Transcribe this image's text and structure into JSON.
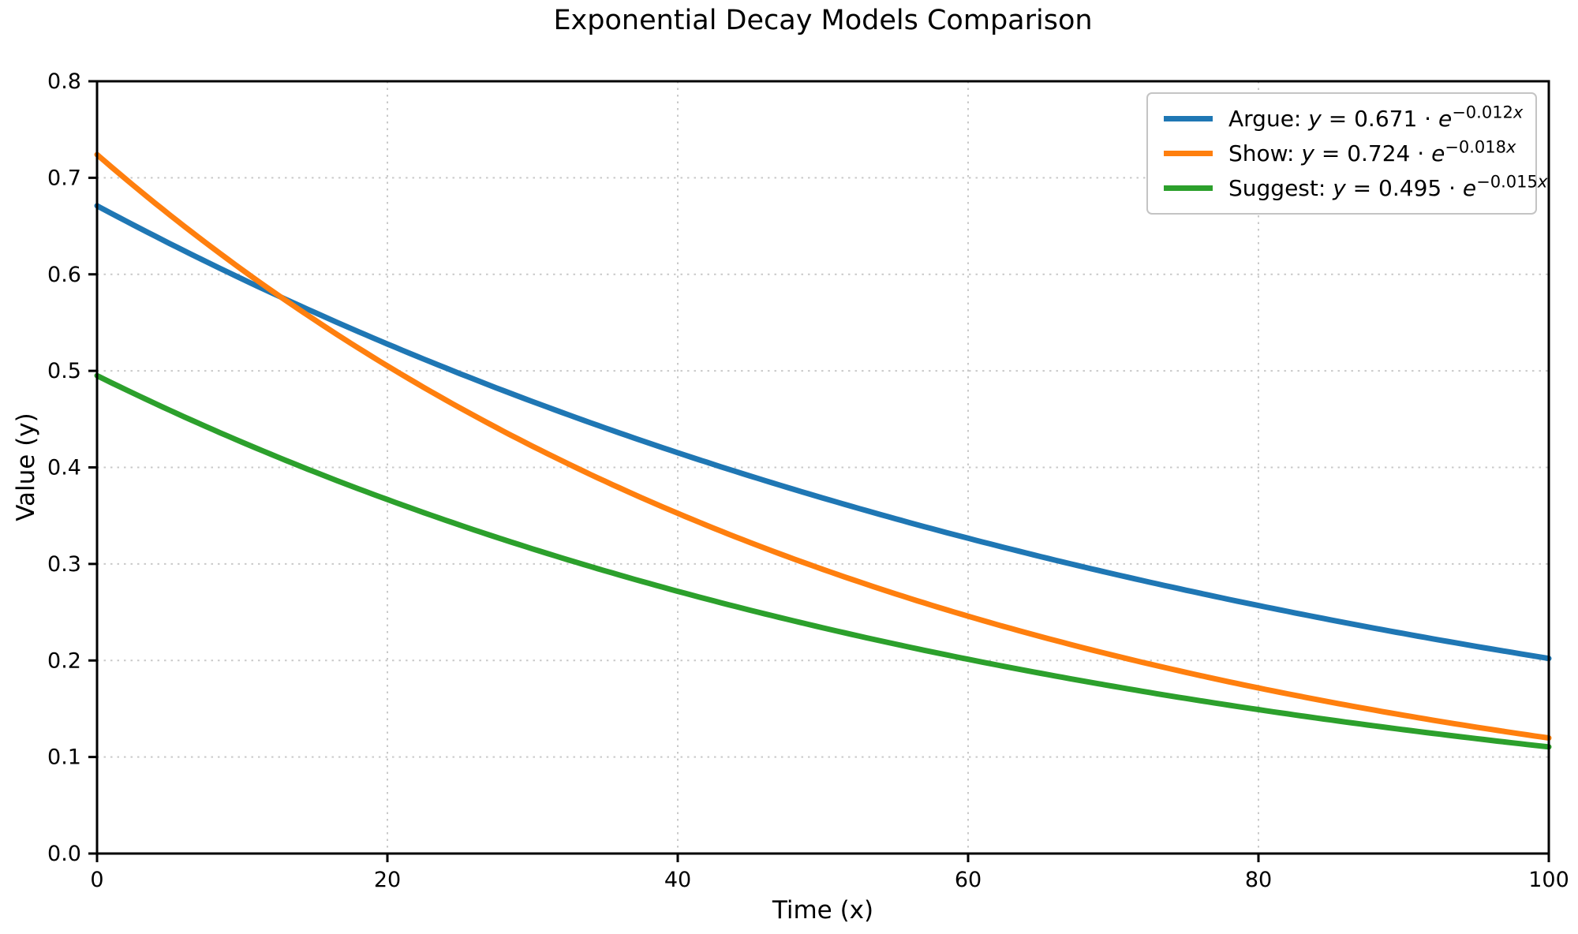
{
  "chart_data": {
    "type": "line",
    "title": "Exponential Decay Models Comparison",
    "xlabel": "Time (x)",
    "ylabel": "Value (y)",
    "xlim": [
      0,
      100
    ],
    "ylim": [
      0.0,
      0.8
    ],
    "x_ticks": [
      "0",
      "20",
      "40",
      "60",
      "80",
      "100"
    ],
    "y_ticks": [
      "0.0",
      "0.1",
      "0.2",
      "0.3",
      "0.4",
      "0.5",
      "0.6",
      "0.7",
      "0.8"
    ],
    "grid": "dotted, light gray, at every tick",
    "legend_position": "upper right",
    "series": [
      {
        "name": "Argue",
        "formula": "y = 0.671 · e^(−0.012x)",
        "amplitude": 0.671,
        "rate": 0.012,
        "color": "#1f77b4",
        "sample_x": [
          0,
          10,
          20,
          30,
          40,
          50,
          60,
          70,
          80,
          90,
          100
        ],
        "sample_y": [
          0.671,
          0.595,
          0.528,
          0.468,
          0.415,
          0.368,
          0.327,
          0.29,
          0.257,
          0.228,
          0.202
        ]
      },
      {
        "name": "Show",
        "formula": "y = 0.724 · e^(−0.018x)",
        "amplitude": 0.724,
        "rate": 0.018,
        "color": "#ff7f0e",
        "sample_x": [
          0,
          10,
          20,
          30,
          40,
          50,
          60,
          70,
          80,
          90,
          100
        ],
        "sample_y": [
          0.724,
          0.605,
          0.505,
          0.422,
          0.352,
          0.294,
          0.246,
          0.205,
          0.172,
          0.143,
          0.12
        ]
      },
      {
        "name": "Suggest",
        "formula": "y = 0.495 · e^(−0.015x)",
        "amplitude": 0.495,
        "rate": 0.015,
        "color": "#2ca02c",
        "sample_x": [
          0,
          10,
          20,
          30,
          40,
          50,
          60,
          70,
          80,
          90,
          100
        ],
        "sample_y": [
          0.495,
          0.426,
          0.367,
          0.316,
          0.272,
          0.234,
          0.201,
          0.173,
          0.149,
          0.128,
          0.11
        ]
      }
    ]
  },
  "legend": {
    "items": [
      {
        "name": "Argue: ",
        "var_y": "y",
        "mid": " = 0.671 · ",
        "var_e": "e",
        "exp_num": "−0.012",
        "exp_var": "x"
      },
      {
        "name": "Show: ",
        "var_y": "y",
        "mid": " = 0.724 · ",
        "var_e": "e",
        "exp_num": "−0.018",
        "exp_var": "x"
      },
      {
        "name": "Suggest: ",
        "var_y": "y",
        "mid": " = 0.495 · ",
        "var_e": "e",
        "exp_num": "−0.015",
        "exp_var": "x"
      }
    ]
  }
}
